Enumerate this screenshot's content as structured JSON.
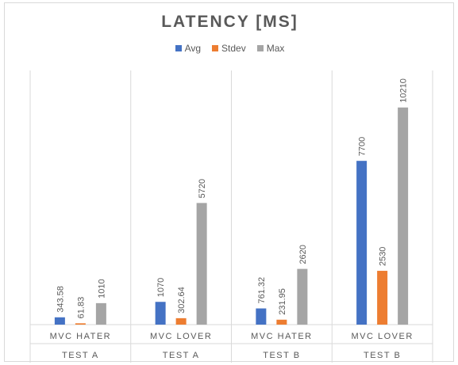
{
  "chart_data": {
    "type": "bar",
    "title": "LATENCY  [MS]",
    "categories": [
      {
        "line1": "MVC HATER",
        "line2": "TEST A"
      },
      {
        "line1": "MVC LOVER",
        "line2": "TEST A"
      },
      {
        "line1": "MVC HATER",
        "line2": "TEST B"
      },
      {
        "line1": "MVC LOVER",
        "line2": "TEST B"
      }
    ],
    "series": [
      {
        "name": "Avg",
        "color": "#4472c4",
        "values": [
          343.58,
          1070,
          761.32,
          7700
        ],
        "labels": [
          "343.58",
          "1070",
          "761.32",
          "7700"
        ]
      },
      {
        "name": "Stdev",
        "color": "#ed7d31",
        "values": [
          61.83,
          302.64,
          231.95,
          2530
        ],
        "labels": [
          "61.83",
          "302.64",
          "231.95",
          "2530"
        ]
      },
      {
        "name": "Max",
        "color": "#a5a5a5",
        "values": [
          1010,
          5720,
          2620,
          10210
        ],
        "labels": [
          "1010",
          "5720",
          "2620",
          "10210"
        ]
      }
    ],
    "ylim": [
      0,
      12000
    ],
    "legend_position": "top",
    "grid": false
  }
}
